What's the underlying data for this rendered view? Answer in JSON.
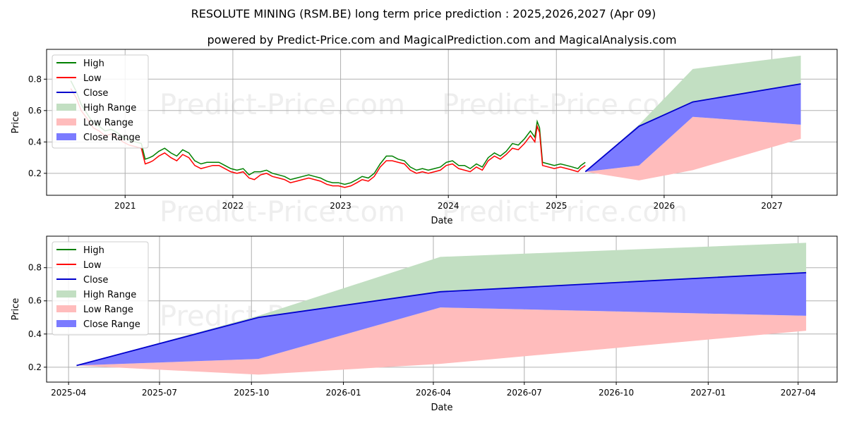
{
  "title": "RESOLUTE MINING (RSM.BE) long term price prediction : 2025,2026,2027 (Apr 09)",
  "subtitle": "powered by Predict-Price.com and MagicalPrediction.com and MagicalAnalysis.com",
  "watermark": "Predict-Price.com",
  "colors": {
    "high": "#008000",
    "low": "#ff0000",
    "close": "#0000cc",
    "high_range": "#c2dfc2",
    "low_range": "#ffbcbc",
    "close_range": "#7b7bff",
    "grid": "#b0b0b0"
  },
  "legend": {
    "position": "top-left",
    "items": [
      {
        "label": "High",
        "kind": "line",
        "color": "#008000"
      },
      {
        "label": "Low",
        "kind": "line",
        "color": "#ff0000"
      },
      {
        "label": "Close",
        "kind": "line",
        "color": "#0000cc"
      },
      {
        "label": "High Range",
        "kind": "patch",
        "color": "#c2dfc2"
      },
      {
        "label": "Low Range",
        "kind": "patch",
        "color": "#ffbcbc"
      },
      {
        "label": "Close Range",
        "kind": "patch",
        "color": "#7b7bff"
      }
    ]
  },
  "chart_data": [
    {
      "type": "line",
      "xlabel": "Date",
      "ylabel": "Price",
      "xlim": [
        "2020-04-10",
        "2027-08-10"
      ],
      "ylim": [
        0.06,
        0.99
      ],
      "grid": true,
      "x_ticks": [
        {
          "date": "2021-01-01",
          "label": "2021"
        },
        {
          "date": "2022-01-01",
          "label": "2022"
        },
        {
          "date": "2023-01-01",
          "label": "2023"
        },
        {
          "date": "2024-01-01",
          "label": "2024"
        },
        {
          "date": "2025-01-01",
          "label": "2025"
        },
        {
          "date": "2026-01-01",
          "label": "2026"
        },
        {
          "date": "2027-01-01",
          "label": "2027"
        }
      ],
      "y_ticks": [
        {
          "value": 0.2,
          "label": "0.2"
        },
        {
          "value": 0.4,
          "label": "0.4"
        },
        {
          "value": 0.6,
          "label": "0.6"
        },
        {
          "value": 0.8,
          "label": "0.8"
        }
      ],
      "history": {
        "dates": [
          "2020-07-01",
          "2020-07-20",
          "2020-08-05",
          "2020-08-25",
          "2020-09-15",
          "2020-10-05",
          "2020-10-25",
          "2020-11-15",
          "2020-12-05",
          "2020-12-25",
          "2021-01-15",
          "2021-02-05",
          "2021-02-25",
          "2021-03-10",
          "2021-03-25",
          "2021-04-05",
          "2021-04-25",
          "2021-05-15",
          "2021-06-05",
          "2021-06-25",
          "2021-07-15",
          "2021-08-05",
          "2021-08-25",
          "2021-09-15",
          "2021-10-05",
          "2021-10-25",
          "2021-11-15",
          "2021-12-05",
          "2021-12-25",
          "2022-01-15",
          "2022-02-05",
          "2022-02-25",
          "2022-03-15",
          "2022-04-05",
          "2022-04-25",
          "2022-05-15",
          "2022-06-05",
          "2022-06-25",
          "2022-07-15",
          "2022-08-05",
          "2022-08-25",
          "2022-09-15",
          "2022-10-05",
          "2022-10-25",
          "2022-11-15",
          "2022-12-05",
          "2022-12-25",
          "2023-01-15",
          "2023-02-05",
          "2023-02-25",
          "2023-03-15",
          "2023-04-05",
          "2023-04-25",
          "2023-05-15",
          "2023-06-05",
          "2023-06-25",
          "2023-07-15",
          "2023-08-05",
          "2023-08-25",
          "2023-09-15",
          "2023-10-05",
          "2023-10-25",
          "2023-11-15",
          "2023-12-05",
          "2023-12-25",
          "2024-01-15",
          "2024-02-05",
          "2024-02-25",
          "2024-03-15",
          "2024-04-05",
          "2024-04-25",
          "2024-05-15",
          "2024-06-05",
          "2024-06-25",
          "2024-07-15",
          "2024-08-05",
          "2024-08-25",
          "2024-09-15",
          "2024-10-05",
          "2024-10-20",
          "2024-10-28",
          "2024-11-05",
          "2024-11-15",
          "2024-12-05",
          "2024-12-25",
          "2025-01-15",
          "2025-02-05",
          "2025-02-25",
          "2025-03-15",
          "2025-03-25",
          "2025-04-09"
        ],
        "low": [
          0.74,
          0.68,
          0.6,
          0.55,
          0.49,
          0.47,
          0.44,
          0.45,
          0.43,
          0.4,
          0.38,
          0.37,
          0.36,
          0.26,
          0.27,
          0.28,
          0.31,
          0.33,
          0.3,
          0.28,
          0.32,
          0.3,
          0.25,
          0.23,
          0.24,
          0.25,
          0.25,
          0.23,
          0.21,
          0.2,
          0.21,
          0.17,
          0.16,
          0.19,
          0.2,
          0.18,
          0.17,
          0.16,
          0.14,
          0.15,
          0.16,
          0.17,
          0.16,
          0.15,
          0.13,
          0.12,
          0.12,
          0.11,
          0.12,
          0.14,
          0.16,
          0.15,
          0.18,
          0.24,
          0.28,
          0.28,
          0.27,
          0.26,
          0.22,
          0.2,
          0.21,
          0.2,
          0.21,
          0.22,
          0.25,
          0.26,
          0.23,
          0.22,
          0.21,
          0.24,
          0.22,
          0.28,
          0.31,
          0.29,
          0.32,
          0.36,
          0.35,
          0.39,
          0.44,
          0.4,
          0.5,
          0.46,
          0.25,
          0.24,
          0.23,
          0.24,
          0.23,
          0.22,
          0.21,
          0.23,
          0.25
        ],
        "high": [
          0.79,
          0.72,
          0.64,
          0.58,
          0.52,
          0.5,
          0.47,
          0.48,
          0.46,
          0.43,
          0.41,
          0.4,
          0.39,
          0.29,
          0.3,
          0.31,
          0.34,
          0.36,
          0.33,
          0.31,
          0.35,
          0.33,
          0.28,
          0.26,
          0.27,
          0.27,
          0.27,
          0.25,
          0.23,
          0.22,
          0.23,
          0.19,
          0.21,
          0.21,
          0.22,
          0.2,
          0.19,
          0.18,
          0.16,
          0.17,
          0.18,
          0.19,
          0.18,
          0.17,
          0.15,
          0.14,
          0.14,
          0.13,
          0.14,
          0.16,
          0.18,
          0.17,
          0.2,
          0.26,
          0.31,
          0.31,
          0.29,
          0.28,
          0.24,
          0.22,
          0.23,
          0.22,
          0.23,
          0.24,
          0.27,
          0.28,
          0.25,
          0.25,
          0.23,
          0.26,
          0.24,
          0.3,
          0.33,
          0.31,
          0.34,
          0.39,
          0.38,
          0.42,
          0.47,
          0.43,
          0.53,
          0.49,
          0.27,
          0.26,
          0.25,
          0.26,
          0.25,
          0.24,
          0.23,
          0.25,
          0.27
        ]
      },
      "forecast": {
        "dates": [
          "2025-04-09",
          "2025-10-08",
          "2026-04-08",
          "2027-04-09"
        ],
        "close": [
          0.21,
          0.5,
          0.655,
          0.77
        ],
        "high_range": {
          "upper": [
            0.21,
            0.51,
            0.865,
            0.95
          ],
          "lower": [
            0.21,
            0.5,
            0.655,
            0.77
          ]
        },
        "close_range": {
          "upper": [
            0.21,
            0.5,
            0.655,
            0.77
          ],
          "lower": [
            0.21,
            0.25,
            0.56,
            0.51
          ]
        },
        "low_range": {
          "upper": [
            0.21,
            0.25,
            0.56,
            0.51
          ],
          "lower": [
            0.21,
            0.155,
            0.22,
            0.42
          ]
        }
      }
    },
    {
      "type": "line",
      "xlabel": "Date",
      "ylabel": "Price",
      "xlim": [
        "2025-03-10",
        "2027-05-10"
      ],
      "ylim": [
        0.11,
        0.99
      ],
      "grid": true,
      "x_ticks": [
        {
          "date": "2025-04-01",
          "label": "2025-04"
        },
        {
          "date": "2025-07-01",
          "label": "2025-07"
        },
        {
          "date": "2025-10-01",
          "label": "2025-10"
        },
        {
          "date": "2026-01-01",
          "label": "2026-01"
        },
        {
          "date": "2026-04-01",
          "label": "2026-04"
        },
        {
          "date": "2026-07-01",
          "label": "2026-07"
        },
        {
          "date": "2026-10-01",
          "label": "2026-10"
        },
        {
          "date": "2027-01-01",
          "label": "2027-01"
        },
        {
          "date": "2027-04-01",
          "label": "2027-04"
        }
      ],
      "y_ticks": [
        {
          "value": 0.2,
          "label": "0.2"
        },
        {
          "value": 0.4,
          "label": "0.4"
        },
        {
          "value": 0.6,
          "label": "0.6"
        },
        {
          "value": 0.8,
          "label": "0.8"
        }
      ],
      "forecast": {
        "dates": [
          "2025-04-09",
          "2025-10-08",
          "2026-04-08",
          "2027-04-09"
        ],
        "close": [
          0.21,
          0.5,
          0.655,
          0.77
        ],
        "high_range": {
          "upper": [
            0.21,
            0.51,
            0.865,
            0.95
          ],
          "lower": [
            0.21,
            0.5,
            0.655,
            0.77
          ]
        },
        "close_range": {
          "upper": [
            0.21,
            0.5,
            0.655,
            0.77
          ],
          "lower": [
            0.21,
            0.25,
            0.56,
            0.51
          ]
        },
        "low_range": {
          "upper": [
            0.21,
            0.25,
            0.56,
            0.51
          ],
          "lower": [
            0.21,
            0.155,
            0.22,
            0.42
          ]
        }
      }
    }
  ]
}
